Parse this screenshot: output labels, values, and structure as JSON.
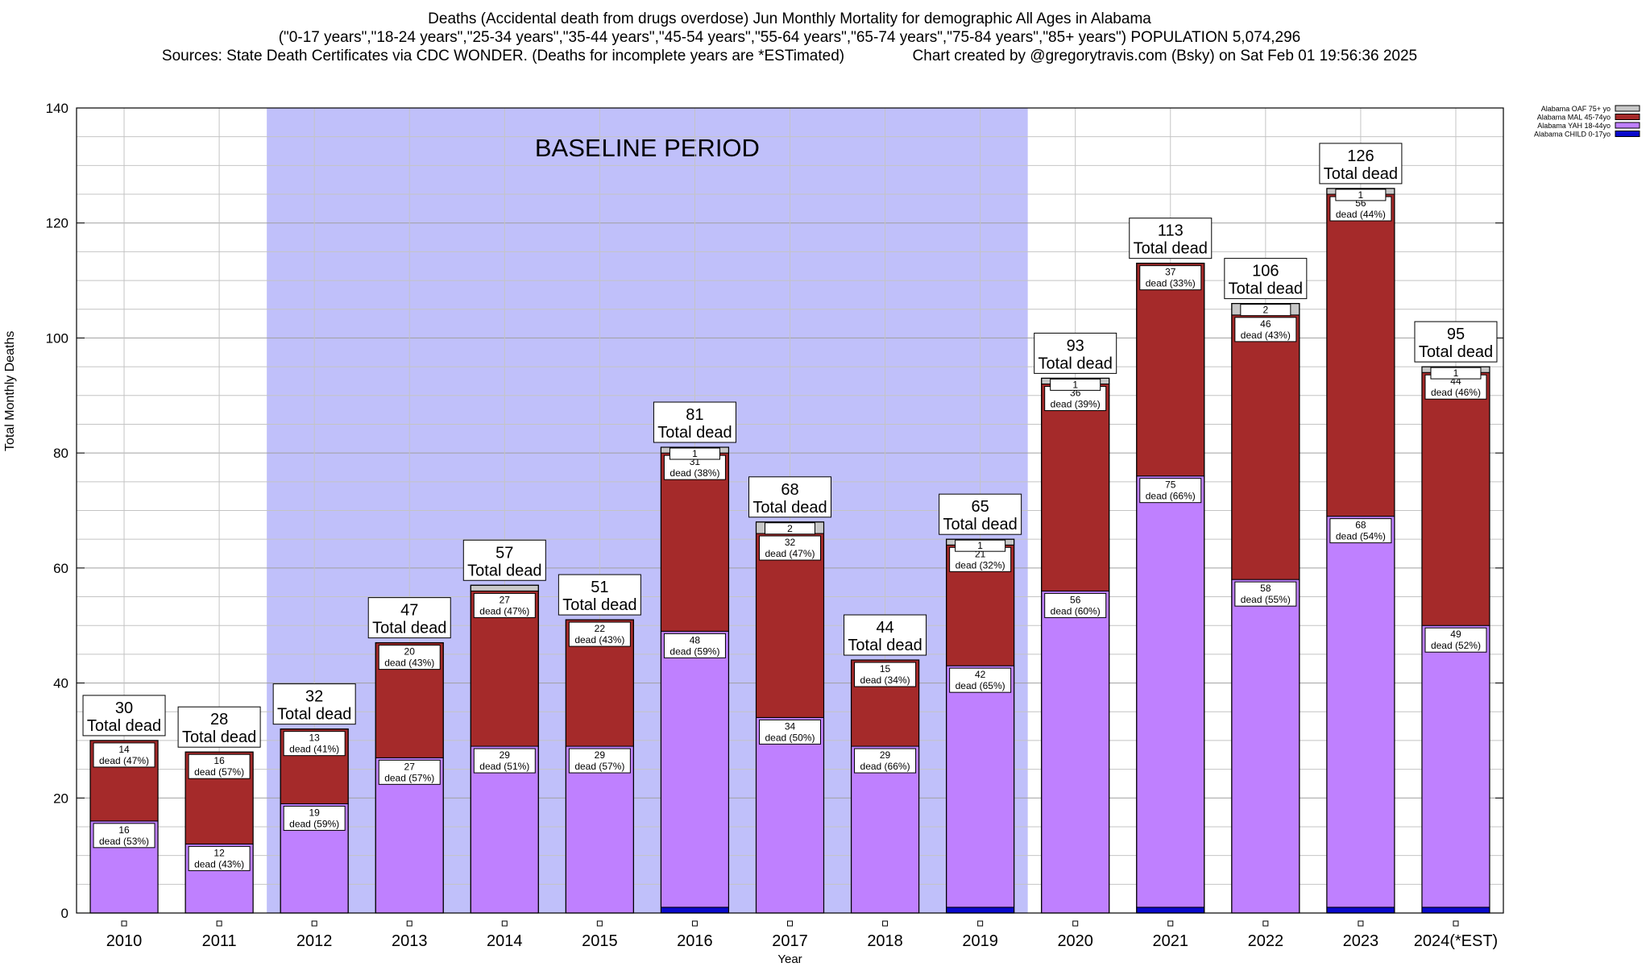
{
  "title_lines": [
    "Deaths (Accidental death from drugs overdose) Jun Monthly Mortality for demographic All Ages in Alabama",
    "(\"0-17 years\",\"18-24 years\",\"25-34 years\",\"35-44 years\",\"45-54 years\",\"55-64 years\",\"65-74 years\",\"75-84 years\",\"85+ years\") POPULATION 5,074,296",
    "Sources: State Death Certificates via CDC WONDER. (Deaths for incomplete years are *ESTimated)                Chart created by @gregorytravis.com (Bsky) on Sat Feb 01 19:56:36 2025"
  ],
  "chart_data": {
    "type": "bar",
    "stacked": true,
    "xlabel": "Year",
    "ylabel": "Total Monthly Deaths",
    "ylim": [
      0,
      140
    ],
    "yticks": [
      0,
      20,
      40,
      60,
      80,
      100,
      120,
      140
    ],
    "grid": true,
    "legend_position": "top-right",
    "categories": [
      "2010",
      "2011",
      "2012",
      "2013",
      "2014",
      "2015",
      "2016",
      "2017",
      "2018",
      "2019",
      "2020",
      "2021",
      "2022",
      "2023",
      "2024(*EST)"
    ],
    "baseline_band": {
      "label": "BASELINE PERIOD",
      "from": "2012",
      "to": "2019",
      "color": "#c0c0fa"
    },
    "series": [
      {
        "name": "Alabama CHILD 0-17yo",
        "color": "#0a0acc",
        "values": [
          0,
          0,
          0,
          0,
          0,
          0,
          1,
          0,
          0,
          1,
          0,
          1,
          0,
          1,
          1
        ]
      },
      {
        "name": "Alabama YAH 18-44yo",
        "color": "#bf80ff",
        "values": [
          16,
          12,
          19,
          27,
          29,
          29,
          48,
          34,
          29,
          42,
          56,
          75,
          58,
          68,
          49
        ],
        "labels": [
          "16|dead (53%)",
          "12|dead (43%)",
          "19|dead (59%)",
          "27|dead (57%)",
          "29|dead (51%)",
          "29|dead (57%)",
          "48|dead (59%)",
          "34|dead (50%)",
          "29|dead (66%)",
          "42|dead (65%)",
          "56|dead (60%)",
          "75|dead (66%)",
          "58|dead (55%)",
          "68|dead (54%)",
          "49|dead (52%)"
        ]
      },
      {
        "name": "Alabama MAL 45-74yo",
        "color": "#a52a2a",
        "values": [
          14,
          16,
          13,
          20,
          27,
          22,
          31,
          32,
          15,
          21,
          36,
          37,
          46,
          56,
          44
        ],
        "labels": [
          "14|dead (47%)",
          "16|dead (57%)",
          "13|dead (41%)",
          "20|dead (43%)",
          "27|dead (47%)",
          "22|dead (43%)",
          "31|dead (38%)",
          "32|dead (47%)",
          "15|dead (34%)",
          "21|dead (32%)",
          "36|dead (39%)",
          "37|dead (33%)",
          "46|dead (43%)",
          "56|dead (44%)",
          "44|dead (46%)"
        ]
      },
      {
        "name": "Alabama OAF 75+ yo",
        "color": "#c8c8c8",
        "values": [
          0,
          0,
          0,
          0,
          1,
          0,
          1,
          2,
          0,
          1,
          1,
          0,
          2,
          1,
          1
        ],
        "labels": [
          "",
          "",
          "",
          "",
          "",
          "",
          "1",
          "2",
          "",
          "1",
          "1",
          "",
          "2",
          "1",
          "1"
        ]
      }
    ],
    "totals": [
      30,
      28,
      32,
      47,
      57,
      51,
      81,
      68,
      44,
      65,
      93,
      113,
      106,
      126,
      95
    ],
    "total_label": "Total dead"
  }
}
